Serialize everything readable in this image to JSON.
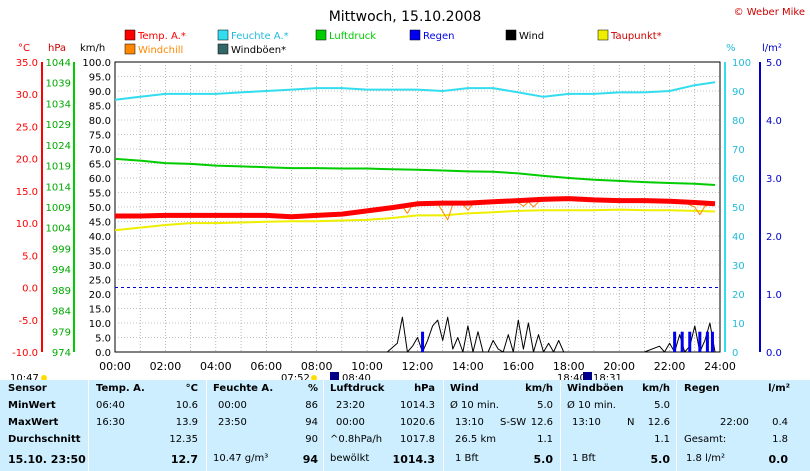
{
  "title": "Mittwoch, 15.10.2008",
  "copyright": "© Weber Mike",
  "colors": {
    "temp": "#ff0000",
    "feuchte": "#33ddee",
    "luftdruck": "#00cc00",
    "regen": "#0000ee",
    "wind": "#000000",
    "taupunkt": "#eeee00",
    "windchill": "#ff8800",
    "windboeen": "#336666",
    "table_bg": "#cceeff",
    "grid": "#888888"
  },
  "legend": [
    {
      "label": "Temp. A.*",
      "key": "temp"
    },
    {
      "label": "Feuchte A.*",
      "key": "feuchte"
    },
    {
      "label": "Luftdruck",
      "key": "luftdruck"
    },
    {
      "label": "Regen",
      "key": "regen"
    },
    {
      "label": "Wind",
      "key": "wind"
    },
    {
      "label": "Taupunkt*",
      "key": "taupunkt"
    },
    {
      "label": "Windchill",
      "key": "windchill"
    },
    {
      "label": "Windböen*",
      "key": "windboeen"
    }
  ],
  "axis_units": {
    "celsius": "°C",
    "hpa": "hPa",
    "kmh": "km/h",
    "percent": "%",
    "rain": "l/m²"
  },
  "axes": {
    "celsius": [
      "35.0",
      "30.0",
      "25.0",
      "20.0",
      "15.0",
      "10.0",
      "5.0",
      "0.0",
      "-5.0",
      "-10.0"
    ],
    "hpa": [
      "1044",
      "1039",
      "1034",
      "1029",
      "1024",
      "1019",
      "1014",
      "1009",
      "1004",
      "999",
      "994",
      "989",
      "984",
      "979",
      "974"
    ],
    "kmh": [
      "100.0",
      "95.0",
      "90.0",
      "85.0",
      "80.0",
      "75.0",
      "70.0",
      "65.0",
      "60.0",
      "55.0",
      "50.0",
      "45.0",
      "40.0",
      "35.0",
      "30.0",
      "25.0",
      "20.0",
      "15.0",
      "10.0",
      "5.0",
      "0.0"
    ],
    "percent": [
      "100",
      "90",
      "80",
      "70",
      "60",
      "50",
      "40",
      "30",
      "20",
      "10",
      "0"
    ],
    "rain": [
      "5.0",
      "4.0",
      "3.0",
      "2.0",
      "1.0",
      "0.0"
    ]
  },
  "x_ticks": [
    "00:00",
    "02:00",
    "04:00",
    "06:00",
    "08:00",
    "10:00",
    "12:00",
    "14:00",
    "16:00",
    "18:00",
    "20:00",
    "22:00",
    "24:00"
  ],
  "sun": {
    "sunrise_prev": "10:47",
    "sunrise": "07:52",
    "moonrise": "08:40",
    "sunset": "18:40",
    "moonset": "18:31"
  },
  "chart_data": {
    "type": "line",
    "title": "Mittwoch, 15.10.2008",
    "x_unit": "hours",
    "xlim": [
      0,
      24
    ],
    "series": [
      {
        "name": "Feuchte A.*",
        "key": "feuchte",
        "unit": "%",
        "ylim": [
          0,
          100
        ],
        "width": 2,
        "x": [
          0,
          1,
          2,
          3,
          4,
          5,
          6,
          7,
          8,
          9,
          10,
          11,
          12,
          13,
          14,
          15,
          16,
          17,
          18,
          19,
          20,
          21,
          22,
          23,
          23.8
        ],
        "values": [
          87,
          88,
          89,
          89,
          89,
          89.5,
          90,
          90.5,
          91,
          91,
          90.5,
          90.5,
          90.5,
          90,
          91,
          91,
          89.5,
          88,
          89,
          89,
          89.5,
          89.5,
          90,
          92,
          93
        ]
      },
      {
        "name": "Luftdruck",
        "key": "luftdruck",
        "unit": "hPa",
        "ylim": [
          974,
          1044
        ],
        "width": 2,
        "x": [
          0,
          1,
          2,
          3,
          4,
          5,
          6,
          7,
          8,
          9,
          10,
          11,
          12,
          13,
          14,
          15,
          16,
          17,
          18,
          19,
          20,
          21,
          22,
          23,
          23.8
        ],
        "values": [
          1020.6,
          1020.2,
          1019.6,
          1019.4,
          1019,
          1018.8,
          1018.6,
          1018.4,
          1018.4,
          1018.3,
          1018.3,
          1018.1,
          1018,
          1017.8,
          1017.6,
          1017.5,
          1017.1,
          1016.5,
          1016,
          1015.6,
          1015.3,
          1015,
          1014.8,
          1014.6,
          1014.3
        ]
      },
      {
        "name": "Taupunkt*",
        "key": "taupunkt",
        "unit": "°C",
        "ylim": [
          -10,
          35
        ],
        "width": 2,
        "x": [
          0,
          1,
          2,
          3,
          4,
          5,
          6,
          7,
          8,
          9,
          10,
          11,
          12,
          13,
          14,
          15,
          16,
          17,
          18,
          19,
          20,
          21,
          22,
          23,
          23.8
        ],
        "values": [
          8.9,
          9.3,
          9.7,
          10,
          10,
          10.1,
          10.2,
          10.3,
          10.3,
          10.4,
          10.5,
          10.8,
          11.2,
          11.2,
          11.5,
          11.7,
          11.9,
          12,
          12,
          12,
          12.1,
          12,
          12,
          11.9,
          11.8
        ]
      },
      {
        "name": "Windchill",
        "key": "windchill",
        "unit": "°C",
        "ylim": [
          -10,
          35
        ],
        "width": 1,
        "x": [
          11.2,
          11.4,
          11.6,
          11.8,
          12,
          12.2,
          12.4,
          12.6,
          12.8,
          13,
          13.2,
          13.4,
          13.6,
          13.8,
          14,
          14.2,
          14.5,
          15,
          15.5,
          16,
          16.2,
          16.4,
          16.6,
          16.8,
          17,
          17.5,
          18,
          19,
          20,
          21,
          22,
          22.5,
          23,
          23.2,
          23.4,
          23.6,
          23.8
        ],
        "values": [
          12.4,
          12.6,
          11.5,
          12.9,
          13,
          13,
          12.8,
          12.9,
          13,
          11.8,
          10.5,
          12.9,
          13.1,
          12.9,
          12,
          13,
          13.1,
          13.1,
          13.2,
          13.2,
          12.6,
          13.3,
          12.5,
          13.3,
          13.4,
          13.5,
          13.6,
          13.6,
          13.5,
          13.5,
          13.4,
          13.3,
          12.5,
          11.3,
          12.6,
          13,
          12.9
        ]
      },
      {
        "name": "Temp. A.*",
        "key": "temp",
        "unit": "°C",
        "ylim": [
          -10,
          35
        ],
        "width": 5,
        "x": [
          0,
          1,
          2,
          3,
          4,
          5,
          6,
          7,
          8,
          9,
          10,
          11,
          12,
          13,
          14,
          15,
          16,
          17,
          18,
          19,
          20,
          21,
          22,
          23,
          23.8
        ],
        "values": [
          11.1,
          11.1,
          11.2,
          11.2,
          11.2,
          11.2,
          11.2,
          11.0,
          11.2,
          11.4,
          11.9,
          12.4,
          13.0,
          13.1,
          13.1,
          13.3,
          13.5,
          13.7,
          13.8,
          13.6,
          13.5,
          13.5,
          13.4,
          13.2,
          13.0
        ]
      },
      {
        "name": "Wind",
        "key": "wind",
        "unit": "km/h",
        "ylim": [
          0,
          100
        ],
        "width": 1,
        "x": [
          0,
          10.8,
          11,
          11.2,
          11.4,
          11.6,
          11.8,
          12,
          12.2,
          12.4,
          12.6,
          12.8,
          13,
          13.2,
          13.4,
          13.6,
          13.8,
          14,
          14.2,
          14.4,
          14.6,
          14.8,
          15,
          15.2,
          15.4,
          15.6,
          15.8,
          16,
          16.2,
          16.4,
          16.6,
          16.8,
          17,
          17.2,
          17.4,
          17.6,
          17.8,
          18,
          18.2,
          21,
          21.6,
          21.8,
          22,
          22.2,
          22.4,
          22.6,
          22.8,
          23,
          23.2,
          23.4,
          23.6,
          23.8
        ],
        "values": [
          0,
          0,
          1.5,
          3,
          12,
          0,
          2,
          5,
          0,
          4,
          9,
          11,
          4,
          12,
          1,
          5,
          0,
          9,
          0,
          7,
          0,
          0,
          4,
          1,
          0,
          6,
          0,
          11,
          1,
          10,
          0,
          6,
          0,
          3,
          0,
          4,
          0,
          0,
          0,
          0,
          2,
          0,
          3,
          0,
          6,
          0,
          2,
          9,
          0,
          4,
          10,
          0
        ]
      },
      {
        "name": "Regen",
        "key": "regen",
        "unit": "l/m²",
        "ylim": [
          0,
          5
        ],
        "type": "bar",
        "x": [
          12.2,
          22.2,
          22.5,
          22.8,
          23.2,
          23.5,
          23.7
        ],
        "values": [
          0.35,
          0.35,
          0.35,
          0.35,
          0.35,
          0.35,
          0.35
        ]
      }
    ],
    "reference_lines": [
      {
        "axis": "celsius",
        "value": 0
      }
    ]
  },
  "table": {
    "headers": [
      "Sensor",
      "Temp. A.",
      "°C",
      "Feuchte A.",
      "%",
      "Luftdruck",
      "hPa",
      "Wind",
      "km/h",
      "Windböen",
      "km/h",
      "Regen",
      "l/m²"
    ],
    "rows": [
      {
        "label": "MinWert",
        "temp_time": "06:40",
        "temp_val": "10.6",
        "hum_time": "00:00",
        "hum_val": "86",
        "press_time": "23:20",
        "press_val": "1014.3",
        "wind_desc": "Ø 10 min.",
        "wind_val": "5.0",
        "gust_desc": "Ø 10 min.",
        "gust_val": "5.0",
        "rain_desc": "",
        "rain_val": ""
      },
      {
        "label": "MaxWert",
        "temp_time": "16:30",
        "temp_val": "13.9",
        "hum_time": "23:50",
        "hum_val": "94",
        "press_time": "00:00",
        "press_val": "1020.6",
        "wind_desc": "13:10",
        "wind_dir": "S-SW",
        "wind_val": "12.6",
        "gust_desc": "13:10",
        "gust_dir": "N",
        "gust_val": "12.6",
        "rain_desc": "22:00",
        "rain_val": "0.4"
      },
      {
        "label": "Durchschnitt",
        "temp_time": "",
        "temp_val": "12.35",
        "hum_time": "",
        "hum_val": "90",
        "press_time": "^0.8hPa/h",
        "press_val": "1017.8",
        "wind_desc": "26.5 km",
        "wind_val": "1.1",
        "gust_desc": "",
        "gust_val": "1.1",
        "rain_desc": "Gesamt:",
        "rain_val": "1.8"
      },
      {
        "label": "15.10. 23:50",
        "temp_time": "",
        "temp_val": "12.7",
        "hum_time": "10.47 g/m³",
        "hum_val": "94",
        "press_time": "bewölkt",
        "press_val": "1014.3",
        "wind_desc": "1 Bft",
        "wind_val": "5.0",
        "gust_desc": "1 Bft",
        "gust_val": "5.0",
        "rain_desc": "1.8 l/m²",
        "rain_val": "0.0"
      }
    ]
  }
}
